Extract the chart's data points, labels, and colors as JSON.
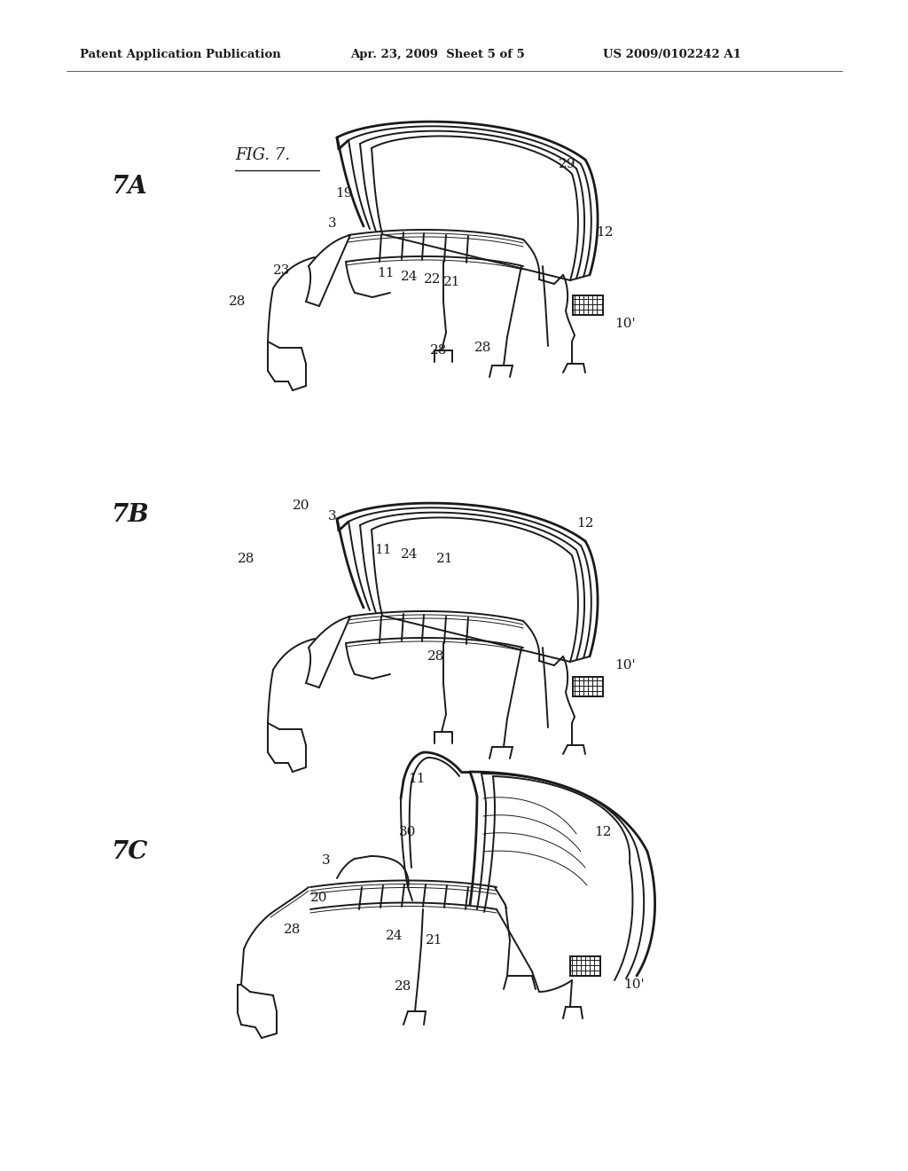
{
  "page_width": 10.24,
  "page_height": 13.2,
  "dpi": 100,
  "background_color": "#ffffff",
  "header_text_left": "Patent Application Publication",
  "header_text_mid": "Apr. 23, 2009  Sheet 5 of 5",
  "header_text_right": "US 2009/0102242 A1",
  "header_fontsize": 9.5,
  "line_color": "#1a1a1a",
  "lw_main": 1.4,
  "lw_thin": 0.7,
  "lw_thick": 2.0,
  "annot_fontsize": 11,
  "sub_label_fontsize": 20,
  "fig_label_fontsize": 13
}
